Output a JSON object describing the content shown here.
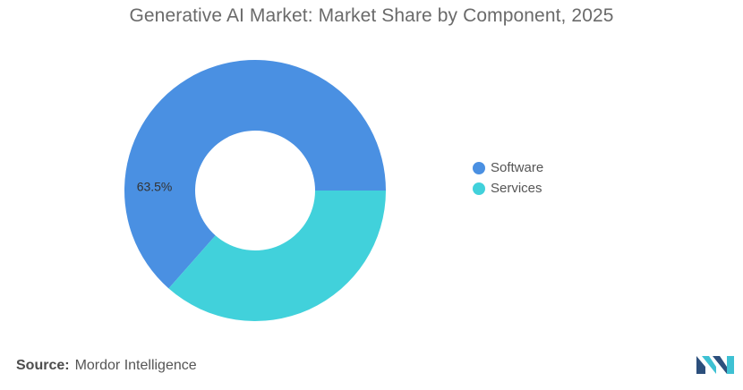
{
  "chart_data": {
    "type": "pie",
    "title": "Generative AI Market: Market Share by Component, 2025",
    "donut": true,
    "categories": [
      "Software",
      "Services"
    ],
    "values": [
      63.5,
      36.5
    ],
    "colors": [
      "#4a90e2",
      "#41d1db"
    ],
    "data_labels": [
      "63.5%",
      ""
    ],
    "legend_position": "right"
  },
  "source": {
    "label": "Source:",
    "text": "Mordor Intelligence"
  },
  "logo": {
    "icon": "mordor-intelligence-logo-icon",
    "colors": [
      "#2c4f7c",
      "#3ec1d3"
    ]
  }
}
